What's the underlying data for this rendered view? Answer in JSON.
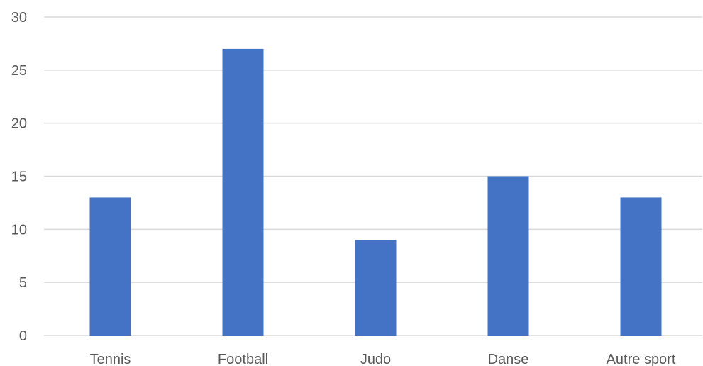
{
  "chart_data": {
    "type": "bar",
    "categories": [
      "Tennis",
      "Football",
      "Judo",
      "Danse",
      "Autre sport"
    ],
    "values": [
      13,
      27,
      9,
      15,
      13
    ],
    "y_ticks": [
      "0",
      "5",
      "10",
      "15",
      "20",
      "25",
      "30"
    ],
    "ylim": [
      0,
      30
    ],
    "grid": true,
    "legend": "none",
    "title": "",
    "xlabel": "",
    "ylabel": "",
    "bar_color": "#4472C4",
    "grid_color": "#D9D9D9",
    "text_color": "#595959"
  }
}
